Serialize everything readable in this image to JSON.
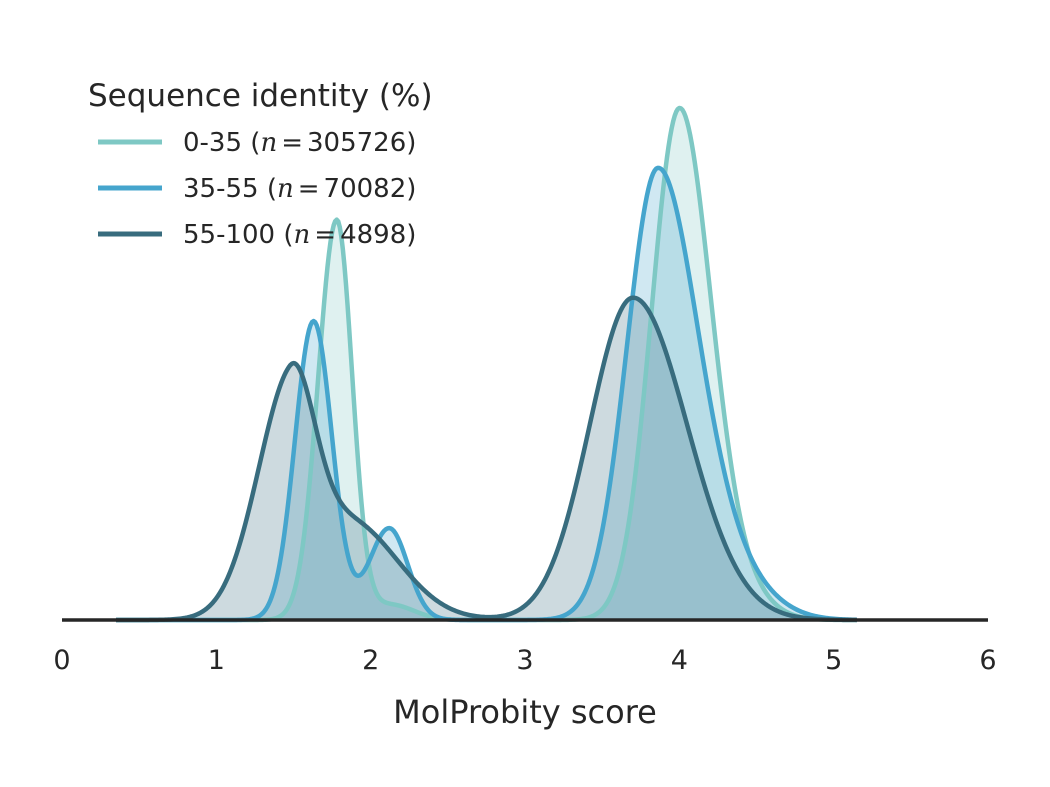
{
  "chart_data": {
    "type": "area",
    "title": "",
    "xlabel": "MolProbity score",
    "ylabel": "",
    "xlim": [
      0,
      6
    ],
    "ylim": [
      0,
      1.0
    ],
    "xticks": [
      "0",
      "1",
      "2",
      "3",
      "4",
      "5",
      "6"
    ],
    "grid": false,
    "legend": {
      "title": "Sequence identity (%)",
      "placement": "top-left",
      "entries": [
        {
          "range": "0-35",
          "n_symbol": "n",
          "eq": "=",
          "n": "305726",
          "open": "(",
          "close": ")"
        },
        {
          "range": "35-55",
          "n_symbol": "n",
          "eq": "=",
          "n": "70082",
          "open": "(",
          "close": ")"
        },
        {
          "range": "55-100",
          "n_symbol": "n",
          "eq": "=",
          "n": "4898",
          "open": "(",
          "close": ")"
        }
      ]
    },
    "series": [
      {
        "name": "0-35",
        "color": "#7ec8c4",
        "fill_color": "#7ec8c4",
        "components": [
          {
            "amp": 0.783,
            "mu": 1.78,
            "sd_left": 0.12,
            "sd_right": 0.1
          },
          {
            "amp": 0.03,
            "mu": 2.13,
            "sd_left": 0.15,
            "sd_right": 0.15
          },
          {
            "amp": 1.0,
            "mu": 4.0,
            "sd_left": 0.18,
            "sd_right": 0.2
          },
          {
            "amp": 0.06,
            "mu": 4.35,
            "sd_left": 0.15,
            "sd_right": 0.2
          }
        ],
        "x_range": [
          0.35,
          5.15
        ]
      },
      {
        "name": "35-55",
        "color": "#45a5cd",
        "fill_color": "#45a5cd",
        "components": [
          {
            "amp": 0.586,
            "mu": 1.63,
            "sd_left": 0.12,
            "sd_right": 0.12
          },
          {
            "amp": 0.18,
            "mu": 2.12,
            "sd_left": 0.13,
            "sd_right": 0.12
          },
          {
            "amp": 0.883,
            "mu": 3.86,
            "sd_left": 0.2,
            "sd_right": 0.26
          },
          {
            "amp": 0.07,
            "mu": 4.35,
            "sd_left": 0.2,
            "sd_right": 0.25
          }
        ],
        "x_range": [
          0.35,
          5.15
        ]
      },
      {
        "name": "55-100",
        "color": "#386c7e",
        "fill_color": "#386c7e",
        "components": [
          {
            "amp": 0.4,
            "mu": 1.48,
            "sd_left": 0.22,
            "sd_right": 0.15
          },
          {
            "amp": 0.195,
            "mu": 1.85,
            "sd_left": 0.32,
            "sd_right": 0.32
          },
          {
            "amp": 0.632,
            "mu": 3.7,
            "sd_left": 0.28,
            "sd_right": 0.35
          }
        ],
        "x_range": [
          0.35,
          5.15
        ]
      }
    ]
  }
}
